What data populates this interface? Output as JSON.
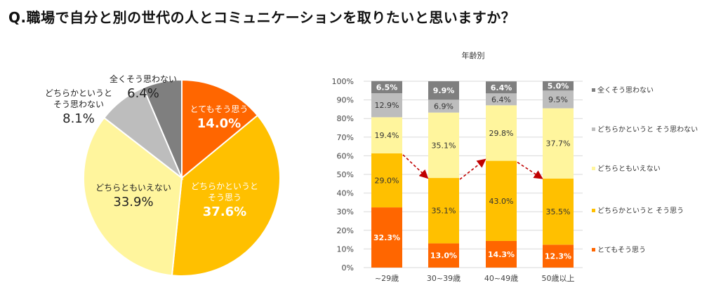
{
  "page": {
    "title": "Q.職場で自分と別の世代の人とコミュニケーションを取りたいと思いますか？"
  },
  "chart_data": [
    {
      "type": "pie",
      "title": "",
      "start": "top, clockwise",
      "slices": [
        {
          "label": "とてもそう思う",
          "label_lines": [
            "とてもそう思う"
          ],
          "value": 14.0,
          "value_label": "14.0%",
          "color": "#FF6600",
          "text_color": "#ffffff"
        },
        {
          "label": "どちらかというと そう思う",
          "label_lines": [
            "どちらかというと",
            "そう思う"
          ],
          "value": 37.6,
          "value_label": "37.6%",
          "color": "#FFC000",
          "text_color": "#ffffff"
        },
        {
          "label": "どちらともいえない",
          "label_lines": [
            "どちらともいえない"
          ],
          "value": 33.9,
          "value_label": "33.9%",
          "color": "#FFF59D",
          "text_color": "#222222"
        },
        {
          "label": "どちらかというと そう思わない",
          "label_lines": [
            "どちらかというと",
            "そう思わない"
          ],
          "value": 8.1,
          "value_label": "8.1%",
          "color": "#BDBDBD",
          "text_color": "#222222"
        },
        {
          "label": "全くそう思わない",
          "label_lines": [
            "全くそう思わない"
          ],
          "value": 6.4,
          "value_label": "6.4%",
          "color": "#7F7F7F",
          "text_color": "#222222"
        }
      ]
    },
    {
      "type": "bar",
      "stacked": true,
      "title": "年齢別",
      "categories": [
        "~29歳",
        "30~39歳",
        "40~49歳",
        "50歳以上"
      ],
      "ylim": [
        0,
        100
      ],
      "yticks": [
        "0%",
        "10%",
        "20%",
        "30%",
        "40%",
        "50%",
        "60%",
        "70%",
        "80%",
        "90%",
        "100%"
      ],
      "grid": true,
      "legend_position": "right",
      "series": [
        {
          "name": "とてもそう思う",
          "color": "#FF6600",
          "label_color": "#ffffff",
          "label_bold": true,
          "values": [
            32.3,
            13.0,
            14.3,
            12.3
          ]
        },
        {
          "name": "どちらかというと そう思う",
          "color": "#FFC000",
          "label_color": "#333333",
          "label_bold": false,
          "values": [
            29.0,
            35.1,
            43.0,
            35.5
          ]
        },
        {
          "name": "どちらともいえない",
          "color": "#FFF59D",
          "label_color": "#333333",
          "label_bold": false,
          "values": [
            19.4,
            35.1,
            29.8,
            37.7
          ]
        },
        {
          "name": "どちらかというと そう思わない",
          "color": "#BDBDBD",
          "label_color": "#333333",
          "label_bold": false,
          "values": [
            12.9,
            6.9,
            6.4,
            9.5
          ]
        },
        {
          "name": "全くそう思わない",
          "color": "#7F7F7F",
          "label_color": "#ffffff",
          "label_bold": true,
          "values": [
            6.5,
            9.9,
            6.4,
            5.0
          ]
        }
      ],
      "annotations": {
        "trend_arrows": "dashed red arrows connecting top of 'とてもそう思う + どちらかというと そう思う' between adjacent age groups",
        "arrow_color": "#C00000"
      }
    }
  ]
}
